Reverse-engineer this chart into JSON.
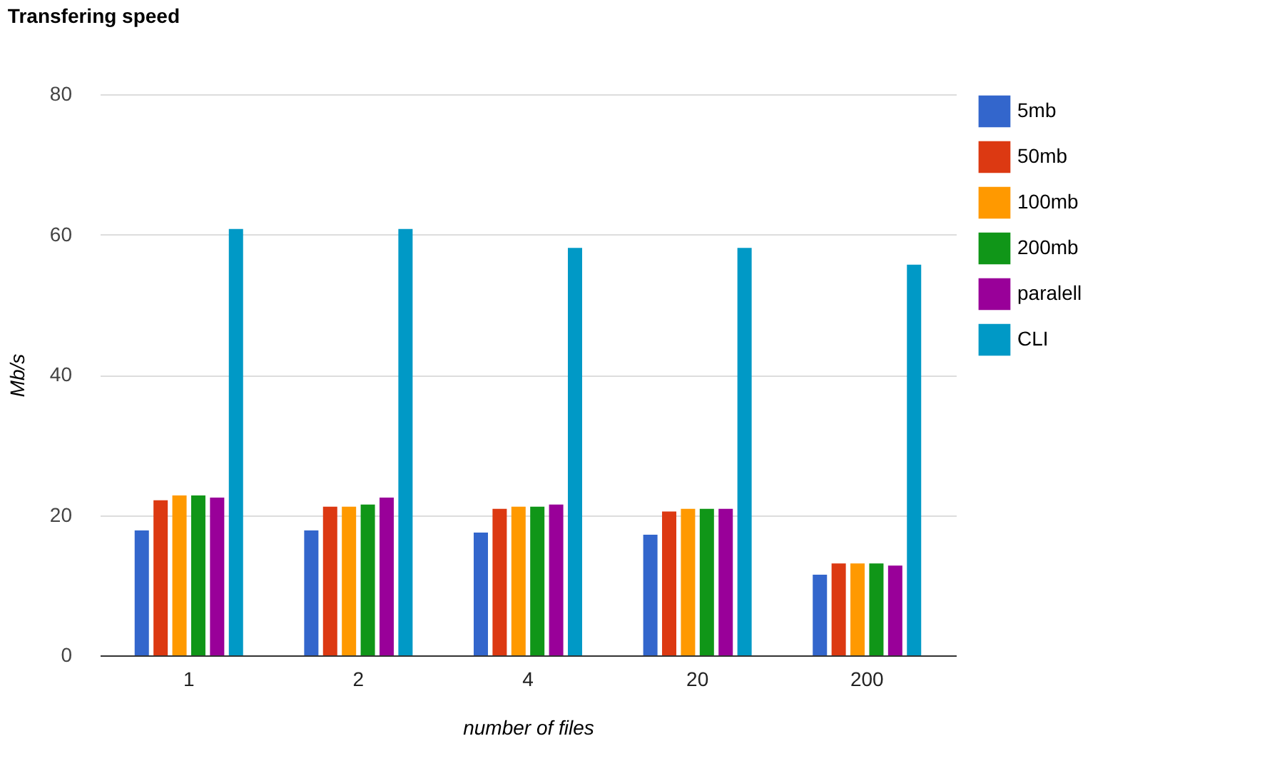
{
  "chart_data": {
    "type": "bar",
    "title": "Transfering speed",
    "xlabel": "number of files",
    "ylabel": "Mb/s",
    "categories": [
      "1",
      "2",
      "4",
      "20",
      "200"
    ],
    "series": [
      {
        "name": "5mb",
        "color": "#3366cc",
        "values": [
          17.8,
          17.8,
          17.5,
          17.2,
          11.5
        ]
      },
      {
        "name": "50mb",
        "color": "#dc3912",
        "values": [
          22.1,
          21.2,
          20.9,
          20.5,
          13.1
        ]
      },
      {
        "name": "100mb",
        "color": "#ff9900",
        "values": [
          22.8,
          21.2,
          21.2,
          20.9,
          13.1
        ]
      },
      {
        "name": "200mb",
        "color": "#109618",
        "values": [
          22.8,
          21.5,
          21.2,
          20.9,
          13.1
        ]
      },
      {
        "name": "paralell",
        "color": "#990099",
        "values": [
          22.5,
          22.5,
          21.5,
          20.9,
          12.8
        ]
      },
      {
        "name": "CLI",
        "color": "#0099c6",
        "values": [
          60.8,
          60.8,
          58.1,
          58.1,
          55.7
        ]
      }
    ],
    "ylim": [
      0,
      80
    ],
    "yticks": [
      0,
      20,
      40,
      60,
      80
    ],
    "grid": "y",
    "legend": "top right"
  }
}
